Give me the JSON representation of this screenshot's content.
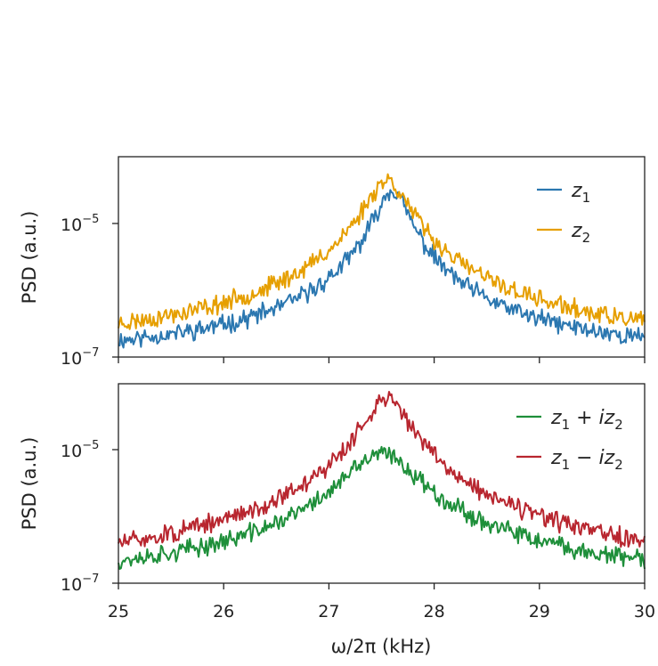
{
  "chart_data": [
    {
      "type": "line",
      "panel": "top",
      "ylabel": "PSD (a.u.)",
      "yscale": "log",
      "ylim": [
        1e-07,
        0.0001
      ],
      "xlim": [
        25,
        30
      ],
      "yticks": [
        {
          "base": "10",
          "exp": "−5",
          "value": 1e-05
        },
        {
          "base": "10",
          "exp": "−7",
          "value": 1e-07
        }
      ],
      "legend_location": "top-right",
      "series": [
        {
          "name": "z1",
          "color": "#2b77b0",
          "label": {
            "main": "z",
            "sub": "1"
          },
          "peak": 27.6,
          "gamma": 0.13,
          "amp": 3.2e-05,
          "floor": 1e-07,
          "seed": 11
        },
        {
          "name": "z2",
          "color": "#e69f00",
          "label": {
            "main": "z",
            "sub": "2"
          },
          "peak": 27.55,
          "gamma": 0.17,
          "amp": 4.5e-05,
          "floor": 1.2e-07,
          "seed": 23
        }
      ]
    },
    {
      "type": "line",
      "panel": "bottom",
      "ylabel": "PSD (a.u.)",
      "yscale": "log",
      "ylim": [
        1e-07,
        0.0001
      ],
      "xlim": [
        25,
        30
      ],
      "yticks": [
        {
          "base": "10",
          "exp": "−5",
          "value": 1e-05
        },
        {
          "base": "10",
          "exp": "−7",
          "value": 1e-07
        }
      ],
      "xticks": [
        25,
        26,
        27,
        28,
        29,
        30
      ],
      "xlabel": "ω/2π (kHz)",
      "legend_location": "top-right",
      "series": [
        {
          "name": "z1 + iz2",
          "color": "#1e8f3a",
          "label": {
            "main": "z",
            "sub1": "1",
            "op": " + ",
            "i": "i",
            "main2": "z",
            "sub2": "2"
          },
          "peak": 27.5,
          "gamma": 0.3,
          "amp": 8.5e-06,
          "floor": 1e-07,
          "seed": 37
        },
        {
          "name": "z1 − iz2",
          "color": "#b8262f",
          "label": {
            "main": "z",
            "sub1": "1",
            "op": " − ",
            "i": "i",
            "main2": "z",
            "sub2": "2"
          },
          "peak": 27.55,
          "gamma": 0.18,
          "amp": 6e-05,
          "floor": 1e-07,
          "seed": 51
        }
      ]
    }
  ]
}
